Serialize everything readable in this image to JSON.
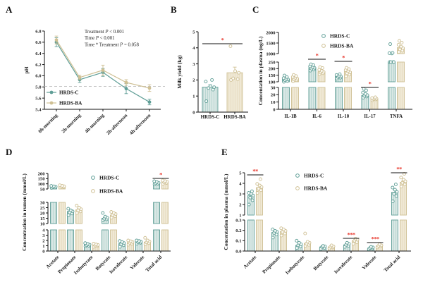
{
  "colors": {
    "teal_stroke": "#5f9e96",
    "teal_fill": "#d8e7e4",
    "tan_stroke": "#cfc094",
    "tan_fill": "#efe8d4",
    "sig": "#e8382d",
    "reference_line": "#c4c4c4",
    "text": "#1a1a1a"
  },
  "groups": [
    "HRDS-C",
    "HRDS-BA"
  ],
  "chart_data": [
    {
      "panel": "A",
      "type": "line",
      "ylabel": "pH",
      "categories": [
        "0h-morning",
        "2h-morning",
        "4h-morning",
        "2h-afternoon",
        "4h-afternoon"
      ],
      "ylim": [
        5.4,
        6.8
      ],
      "yticks": [
        "5.4",
        "5.6",
        "5.8",
        "6.0",
        "6.2",
        "6.4",
        "6.6",
        "6.8"
      ],
      "reference_line": 5.81,
      "legend": [
        "HRDS-C",
        "HRDS-BA"
      ],
      "series": [
        {
          "name": "HRDS-C",
          "key": "teal",
          "values": [
            6.6,
            5.93,
            6.06,
            5.77,
            5.53
          ],
          "errors": [
            0.08,
            0.05,
            0.07,
            0.09,
            0.05
          ]
        },
        {
          "name": "HRDS-BA",
          "key": "tan",
          "values": [
            6.64,
            5.97,
            6.1,
            5.88,
            5.78
          ],
          "errors": [
            0.07,
            0.04,
            0.09,
            0.05,
            0.06
          ]
        }
      ],
      "annotations": [
        "Treatment P < 0.001",
        "Time P < 0.001",
        "Time * Treatment P = 0.058"
      ]
    },
    {
      "panel": "B",
      "type": "bar",
      "ylabel": "Milk yield (kg)",
      "categories": [
        "HRDS-C",
        "HRDS-BA"
      ],
      "ylim": [
        0,
        5
      ],
      "yticks": [
        "0",
        "1",
        "2",
        "3",
        "4",
        "5"
      ],
      "bars": [
        {
          "name": "HRDS-C",
          "key": "teal",
          "value": 1.55,
          "err": 0.15,
          "points": [
            0.68,
            1.4,
            1.5,
            1.55,
            1.62,
            1.9,
            2.0
          ]
        },
        {
          "name": "HRDS-BA",
          "key": "tan",
          "value": 2.45,
          "err": 0.35,
          "points": [
            2.0,
            2.05,
            2.1,
            2.45,
            2.55,
            4.1
          ]
        }
      ],
      "sig": [
        {
          "between": [
            0,
            1
          ],
          "label": "*"
        }
      ]
    },
    {
      "panel": "C",
      "type": "grouped-bar",
      "ylabel": "Concentation in plasma (ng/L)",
      "axis_segments": [
        {
          "range": [
            0,
            30
          ],
          "ticks": [
            "0",
            "10",
            "20",
            "30"
          ]
        },
        {
          "range": [
            100,
            250
          ],
          "ticks": [
            "100",
            "150",
            "200",
            "250"
          ]
        },
        {
          "range": [
            1000,
            2000
          ],
          "ticks": [
            "1000",
            "1500",
            "2000"
          ]
        }
      ],
      "categories": [
        "IL-1B",
        "IL-6",
        "IL-10",
        "IL-17",
        "TNFA"
      ],
      "legend": [
        "HRDS-C",
        "HRDS-BA"
      ],
      "series": [
        {
          "name": "HRDS-C",
          "key": "teal",
          "values": [
            120,
            207,
            140,
            19,
            1000
          ],
          "errors": [
            8,
            8,
            6,
            1.5,
            40
          ],
          "points": [
            [
              100,
              106,
              112,
              118,
              122,
              128,
              136,
              148
            ],
            [
              185,
              193,
              200,
              206,
              211,
              218,
              227,
              233
            ],
            [
              125,
              131,
              137,
              141,
              146,
              152,
              158
            ],
            [
              16,
              17.5,
              18.5,
              19.5,
              21,
              23,
              26,
              28
            ],
            [
              940,
              960,
              975,
              990,
              1005,
              1020,
              1035,
              1450
            ]
          ]
        },
        {
          "name": "HRDS-BA",
          "key": "tan",
          "values": [
            128,
            177,
            178,
            14.5,
            1280
          ],
          "errors": [
            8,
            8,
            7,
            0.8,
            60
          ],
          "points": [
            [
              104,
              112,
              118,
              124,
              130,
              137,
              144,
              152
            ],
            [
              158,
              165,
              171,
              176,
              183,
              191,
              205,
              212
            ],
            [
              142,
              155,
              164,
              172,
              181,
              189,
              197,
              206
            ],
            [
              12.5,
              13.5,
              14,
              14.5,
              15,
              15.5,
              16.5
            ],
            [
              1080,
              1140,
              1200,
              1260,
              1330,
              1420,
              1520,
              1600
            ]
          ]
        }
      ],
      "sig": [
        {
          "category": "IL-6",
          "label": "*"
        },
        {
          "category": "IL-10",
          "label": "*"
        },
        {
          "category": "IL-17",
          "label": "*"
        }
      ]
    },
    {
      "panel": "D",
      "type": "grouped-bar",
      "ylabel": "Concentration in rumen (mmol/L)",
      "axis_segments": [
        {
          "range": [
            0,
            4
          ],
          "ticks": [
            "0",
            "1",
            "2",
            "3",
            "4"
          ]
        },
        {
          "range": [
            10,
            30
          ],
          "ticks": [
            "10",
            "15",
            "20",
            "25",
            "30"
          ]
        },
        {
          "range": [
            50,
            200
          ],
          "ticks": [
            "50",
            "100",
            "150",
            "200"
          ]
        }
      ],
      "categories": [
        "Acetate",
        "Propionate",
        "Isobutyrate",
        "Butyrate",
        "Isovalerate",
        "Valerate",
        "Total acid"
      ],
      "legend": [
        "HRDS-C",
        "HRDS-BA"
      ],
      "series": [
        {
          "name": "HRDS-C",
          "key": "teal",
          "values": [
            70,
            21.5,
            1.2,
            15,
            1.4,
            1.7,
            105
          ],
          "errors": [
            4,
            1.3,
            0.15,
            1.2,
            0.2,
            0.15,
            7
          ],
          "points": [
            [
              60,
              64,
              68,
              72,
              76,
              80
            ],
            [
              18,
              19.5,
              20.5,
              21.5,
              22.5,
              24
            ],
            [
              0.9,
              1.0,
              1.1,
              1.2,
              1.35,
              1.5
            ],
            [
              13,
              14,
              14.5,
              15.5,
              16.5,
              20
            ],
            [
              0.8,
              1.1,
              1.3,
              1.5,
              1.7,
              1.9
            ],
            [
              1.4,
              1.55,
              1.65,
              1.75,
              1.9,
              2.0
            ],
            [
              95,
              100,
              105,
              110,
              118,
              125
            ]
          ]
        },
        {
          "name": "HRDS-BA",
          "key": "tan",
          "values": [
            74,
            23,
            1.1,
            18,
            1.6,
            1.7,
            115
          ],
          "errors": [
            4,
            1.3,
            0.12,
            1.0,
            0.15,
            0.2,
            7
          ],
          "points": [
            [
              64,
              68,
              72,
              76,
              81,
              86
            ],
            [
              20,
              21.5,
              22.5,
              23.5,
              25,
              27
            ],
            [
              0.8,
              0.95,
              1.05,
              1.15,
              1.25,
              1.4
            ],
            [
              15.5,
              17,
              18,
              19,
              20,
              21
            ],
            [
              1.2,
              1.4,
              1.55,
              1.7,
              1.85,
              2.0
            ],
            [
              1.3,
              1.5,
              1.65,
              1.8,
              2.0,
              2.5
            ],
            [
              100,
              108,
              114,
              120,
              126,
              132
            ]
          ]
        }
      ],
      "sig": [
        {
          "category": "Total acid",
          "label": "*"
        }
      ]
    },
    {
      "panel": "E",
      "type": "grouped-bar",
      "ylabel": "Concentation in plasma (mmol/L)",
      "axis_segments": [
        {
          "range": [
            0,
            0.3
          ],
          "ticks": [
            "0.0",
            "0.1",
            "0.2",
            "0.3"
          ]
        },
        {
          "range": [
            1,
            5
          ],
          "ticks": [
            "1",
            "2",
            "3",
            "4",
            "5"
          ]
        }
      ],
      "categories": [
        "Acetate",
        "Propionate",
        "Isobutyrate",
        "Butyrate",
        "Isovalerate",
        "Valerate",
        "Total acid"
      ],
      "legend": [
        "HRDS-C",
        "HRDS-BA"
      ],
      "series": [
        {
          "name": "HRDS-C",
          "key": "teal",
          "values": [
            2.85,
            0.18,
            0.055,
            0.04,
            0.06,
            0.028,
            3.15
          ],
          "errors": [
            0.15,
            0.012,
            0.008,
            0.005,
            0.006,
            0.004,
            0.2
          ],
          "points": [
            [
              2.0,
              2.4,
              2.65,
              2.85,
              3.0,
              3.1,
              3.25
            ],
            [
              0.13,
              0.16,
              0.175,
              0.185,
              0.195,
              0.21
            ],
            [
              0.03,
              0.045,
              0.055,
              0.065,
              0.08,
              0.1
            ],
            [
              0.02,
              0.03,
              0.04,
              0.045,
              0.05
            ],
            [
              0.04,
              0.05,
              0.06,
              0.07,
              0.08
            ],
            [
              0.018,
              0.024,
              0.03,
              0.035,
              0.04
            ],
            [
              2.3,
              2.8,
              3.0,
              3.2,
              3.4,
              3.6,
              3.9
            ]
          ]
        },
        {
          "name": "HRDS-BA",
          "key": "tan",
          "values": [
            3.6,
            0.19,
            0.075,
            0.04,
            0.1,
            0.05,
            4.1
          ],
          "errors": [
            0.15,
            0.012,
            0.01,
            0.005,
            0.008,
            0.005,
            0.15
          ],
          "points": [
            [
              3.1,
              3.35,
              3.5,
              3.65,
              3.8,
              3.95,
              4.4
            ],
            [
              0.15,
              0.17,
              0.185,
              0.195,
              0.21,
              0.22
            ],
            [
              0.05,
              0.06,
              0.07,
              0.08,
              0.09,
              0.17
            ],
            [
              0.025,
              0.035,
              0.04,
              0.045,
              0.055
            ],
            [
              0.07,
              0.085,
              0.1,
              0.11,
              0.12
            ],
            [
              0.035,
              0.045,
              0.05,
              0.055,
              0.065
            ],
            [
              3.7,
              3.9,
              4.05,
              4.2,
              4.35,
              4.55,
              4.9
            ]
          ]
        }
      ],
      "sig": [
        {
          "category": "Acetate",
          "label": "**"
        },
        {
          "category": "Isovalerate",
          "label": "***"
        },
        {
          "category": "Valerate",
          "label": "***"
        },
        {
          "category": "Total acid",
          "label": "**"
        }
      ]
    }
  ]
}
